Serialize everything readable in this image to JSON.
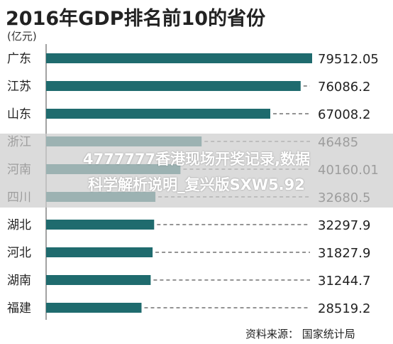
{
  "header": {
    "title": "2016年GDP排名前10的省份",
    "unit": "(亿元)"
  },
  "footer": {
    "source": "资料来源：  国家统计局"
  },
  "watermark": {
    "line1": "4777777香港现场开奖记录,数据",
    "line2": "科学解析说明_复兴版SXW5.92"
  },
  "colors": {
    "bar": "#1f6b6e",
    "dash": "#555555",
    "text": "#222222"
  },
  "chart_data": {
    "type": "bar",
    "orientation": "horizontal",
    "title": "2016年GDP排名前10的省份",
    "unit": "(亿元)",
    "categories": [
      "广东",
      "江苏",
      "山东",
      "浙江",
      "河南",
      "四川",
      "湖北",
      "河北",
      "湖南",
      "福建"
    ],
    "values": [
      79512.05,
      76086.2,
      67008.2,
      46485,
      40160.01,
      32680.5,
      32297.9,
      31827.9,
      31244.7,
      28519.2
    ],
    "value_labels": [
      "79512.05",
      "76086.2",
      "67008.2",
      "46485",
      "40160.01",
      "32680.5",
      "32297.9",
      "31827.9",
      "31244.7",
      "28519.2"
    ],
    "xlim": [
      0,
      79512.05
    ],
    "grid": false,
    "legend": "none"
  }
}
